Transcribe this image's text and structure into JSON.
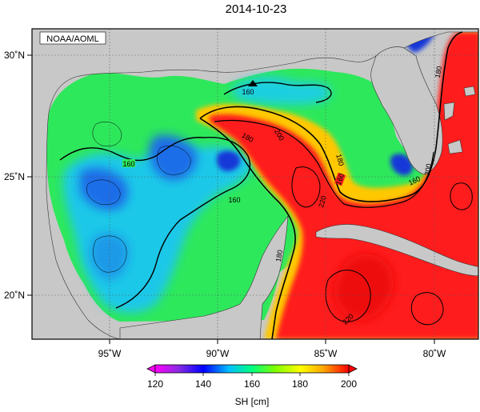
{
  "title": "2014-10-23",
  "credit": "NOAA/AOML",
  "axes": {
    "lon_ticks": [
      "95˚W",
      "90˚W",
      "85˚W",
      "80˚W"
    ],
    "lat_ticks": [
      "30˚N",
      "25˚N",
      "20˚N"
    ]
  },
  "contour_labels": [
    "160",
    "160",
    "160",
    "160",
    "180",
    "180",
    "180",
    "180",
    "200",
    "200",
    "220",
    "220",
    "160"
  ],
  "colorbar": {
    "title": "SH [cm]",
    "tick_labels": [
      "120",
      "140",
      "160",
      "180",
      "200"
    ],
    "colors": {
      "c120": "#ff00ff",
      "c130": "#8a2be2",
      "c140": "#0000ff",
      "c150": "#00bfff",
      "c160": "#00ff7f",
      "c170": "#7fff00",
      "c180": "#ffff00",
      "c190": "#ffa500",
      "c200": "#ff0000"
    }
  },
  "colors": {
    "land": "#c8c8c8",
    "frame": "#000000",
    "grid": "#555555"
  }
}
